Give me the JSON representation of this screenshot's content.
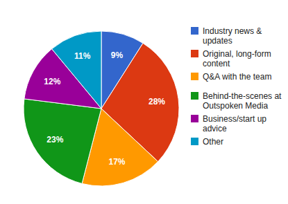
{
  "chart_data": {
    "type": "pie",
    "categories": [
      "Industry news & updates",
      "Original, long-form content",
      "Q&A with the team",
      "Behind-the-scenes at Outspoken Media",
      "Business/start up advice",
      "Other"
    ],
    "values": [
      9,
      28,
      17,
      23,
      12,
      11
    ],
    "value_labels": [
      "9%",
      "28%",
      "17%",
      "23%",
      "12%",
      "11%"
    ],
    "colors": [
      "#3366cc",
      "#dc3912",
      "#ff9900",
      "#109618",
      "#990099",
      "#0099c6"
    ],
    "data_labels": true,
    "legend": "right"
  }
}
